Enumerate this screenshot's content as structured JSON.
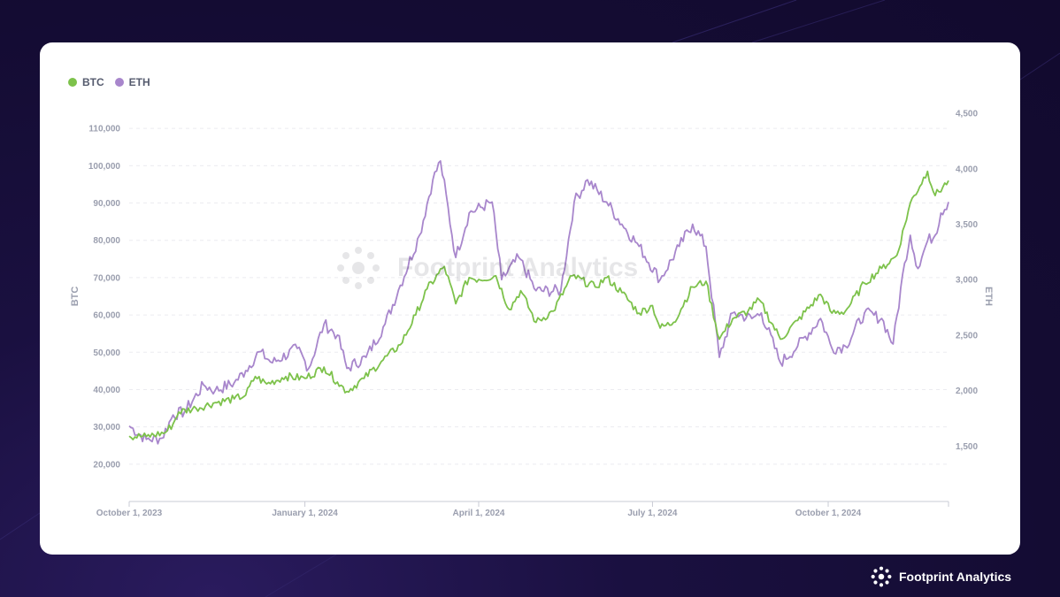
{
  "chart_data": {
    "type": "line",
    "title": "",
    "legend": {
      "position": "top-left",
      "entries": [
        "BTC",
        "ETH"
      ]
    },
    "grid": true,
    "x_axis": {
      "type": "date",
      "range": [
        "2023-10-01",
        "2024-12-03"
      ],
      "ticks": [
        {
          "date": "2023-10-01",
          "label": "October 1, 2023"
        },
        {
          "date": "2024-01-01",
          "label": "January 1, 2024"
        },
        {
          "date": "2024-04-01",
          "label": "April 1, 2024"
        },
        {
          "date": "2024-07-01",
          "label": "July 1, 2024"
        },
        {
          "date": "2024-10-01",
          "label": "October 1, 2024"
        }
      ]
    },
    "y_left": {
      "label": "BTC",
      "range": [
        10000,
        120000
      ],
      "ticks": [
        20000,
        30000,
        40000,
        50000,
        60000,
        70000,
        80000,
        90000,
        100000,
        110000
      ],
      "tick_labels": [
        "20,000",
        "30,000",
        "40,000",
        "50,000",
        "60,000",
        "70,000",
        "80,000",
        "90,000",
        "100,000",
        "110,000"
      ]
    },
    "y_right": {
      "label": "ETH",
      "range": [
        1000,
        4700
      ],
      "ticks": [
        1500,
        2000,
        2500,
        3000,
        3500,
        4000,
        4500
      ],
      "tick_labels": [
        "1,500",
        "2,000",
        "2,500",
        "3,000",
        "3,500",
        "4,000",
        "4,500"
      ]
    },
    "series": [
      {
        "name": "BTC",
        "axis": "left",
        "color": "#7dc24b",
        "points": [
          [
            "2023-10-01",
            27500
          ],
          [
            "2023-10-10",
            27400
          ],
          [
            "2023-10-20",
            28500
          ],
          [
            "2023-10-24",
            30800
          ],
          [
            "2023-10-27",
            34000
          ],
          [
            "2023-11-05",
            35000
          ],
          [
            "2023-11-15",
            36500
          ],
          [
            "2023-11-25",
            37500
          ],
          [
            "2023-12-01",
            38500
          ],
          [
            "2023-12-06",
            43500
          ],
          [
            "2023-12-12",
            41500
          ],
          [
            "2023-12-22",
            43500
          ],
          [
            "2024-01-01",
            43000
          ],
          [
            "2024-01-11",
            46000
          ],
          [
            "2024-01-18",
            42000
          ],
          [
            "2024-01-23",
            39500
          ],
          [
            "2024-02-01",
            43000
          ],
          [
            "2024-02-10",
            47500
          ],
          [
            "2024-02-20",
            52000
          ],
          [
            "2024-02-28",
            60000
          ],
          [
            "2024-03-05",
            67000
          ],
          [
            "2024-03-14",
            73000
          ],
          [
            "2024-03-20",
            63000
          ],
          [
            "2024-03-27",
            70000
          ],
          [
            "2024-04-01",
            69500
          ],
          [
            "2024-04-10",
            70500
          ],
          [
            "2024-04-17",
            61500
          ],
          [
            "2024-04-23",
            66500
          ],
          [
            "2024-05-01",
            58000
          ],
          [
            "2024-05-10",
            61000
          ],
          [
            "2024-05-20",
            70500
          ],
          [
            "2024-06-01",
            67500
          ],
          [
            "2024-06-07",
            70000
          ],
          [
            "2024-06-15",
            66000
          ],
          [
            "2024-06-24",
            60500
          ],
          [
            "2024-07-01",
            62500
          ],
          [
            "2024-07-05",
            56500
          ],
          [
            "2024-07-12",
            58000
          ],
          [
            "2024-07-22",
            67500
          ],
          [
            "2024-07-29",
            69000
          ],
          [
            "2024-08-05",
            53500
          ],
          [
            "2024-08-12",
            59000
          ],
          [
            "2024-08-20",
            61000
          ],
          [
            "2024-08-26",
            64000
          ],
          [
            "2024-09-06",
            53500
          ],
          [
            "2024-09-15",
            58500
          ],
          [
            "2024-09-27",
            65500
          ],
          [
            "2024-10-03",
            60500
          ],
          [
            "2024-10-10",
            61000
          ],
          [
            "2024-10-20",
            68500
          ],
          [
            "2024-10-29",
            72500
          ],
          [
            "2024-11-06",
            76000
          ],
          [
            "2024-11-13",
            90000
          ],
          [
            "2024-11-22",
            98500
          ],
          [
            "2024-11-26",
            92000
          ],
          [
            "2024-12-03",
            96000
          ]
        ]
      },
      {
        "name": "ETH",
        "axis": "right",
        "color": "#a886cc",
        "points": [
          [
            "2023-10-01",
            1680
          ],
          [
            "2023-10-10",
            1560
          ],
          [
            "2023-10-18",
            1570
          ],
          [
            "2023-10-24",
            1780
          ],
          [
            "2023-10-30",
            1810
          ],
          [
            "2023-11-09",
            2050
          ],
          [
            "2023-11-15",
            2000
          ],
          [
            "2023-11-25",
            2070
          ],
          [
            "2023-12-01",
            2180
          ],
          [
            "2023-12-08",
            2350
          ],
          [
            "2023-12-15",
            2250
          ],
          [
            "2023-12-28",
            2380
          ],
          [
            "2024-01-03",
            2200
          ],
          [
            "2024-01-11",
            2600
          ],
          [
            "2024-01-18",
            2500
          ],
          [
            "2024-01-23",
            2200
          ],
          [
            "2024-02-02",
            2300
          ],
          [
            "2024-02-12",
            2600
          ],
          [
            "2024-02-20",
            2950
          ],
          [
            "2024-03-01",
            3400
          ],
          [
            "2024-03-08",
            3900
          ],
          [
            "2024-03-12",
            4070
          ],
          [
            "2024-03-20",
            3200
          ],
          [
            "2024-03-27",
            3600
          ],
          [
            "2024-04-08",
            3700
          ],
          [
            "2024-04-13",
            3000
          ],
          [
            "2024-04-22",
            3200
          ],
          [
            "2024-05-01",
            2900
          ],
          [
            "2024-05-14",
            2900
          ],
          [
            "2024-05-21",
            3700
          ],
          [
            "2024-05-28",
            3900
          ],
          [
            "2024-06-07",
            3700
          ],
          [
            "2024-06-15",
            3500
          ],
          [
            "2024-06-24",
            3300
          ],
          [
            "2024-07-05",
            3000
          ],
          [
            "2024-07-15",
            3300
          ],
          [
            "2024-07-22",
            3500
          ],
          [
            "2024-07-29",
            3300
          ],
          [
            "2024-08-05",
            2300
          ],
          [
            "2024-08-12",
            2700
          ],
          [
            "2024-08-22",
            2650
          ],
          [
            "2024-08-27",
            2700
          ],
          [
            "2024-09-06",
            2250
          ],
          [
            "2024-09-15",
            2400
          ],
          [
            "2024-09-27",
            2650
          ],
          [
            "2024-10-03",
            2380
          ],
          [
            "2024-10-10",
            2400
          ],
          [
            "2024-10-20",
            2700
          ],
          [
            "2024-10-29",
            2650
          ],
          [
            "2024-11-04",
            2420
          ],
          [
            "2024-11-10",
            3150
          ],
          [
            "2024-11-13",
            3400
          ],
          [
            "2024-11-17",
            3100
          ],
          [
            "2024-11-22",
            3350
          ],
          [
            "2024-11-26",
            3400
          ],
          [
            "2024-11-29",
            3600
          ],
          [
            "2024-12-03",
            3700
          ]
        ]
      }
    ]
  },
  "brand": {
    "name": "Footprint Analytics"
  }
}
